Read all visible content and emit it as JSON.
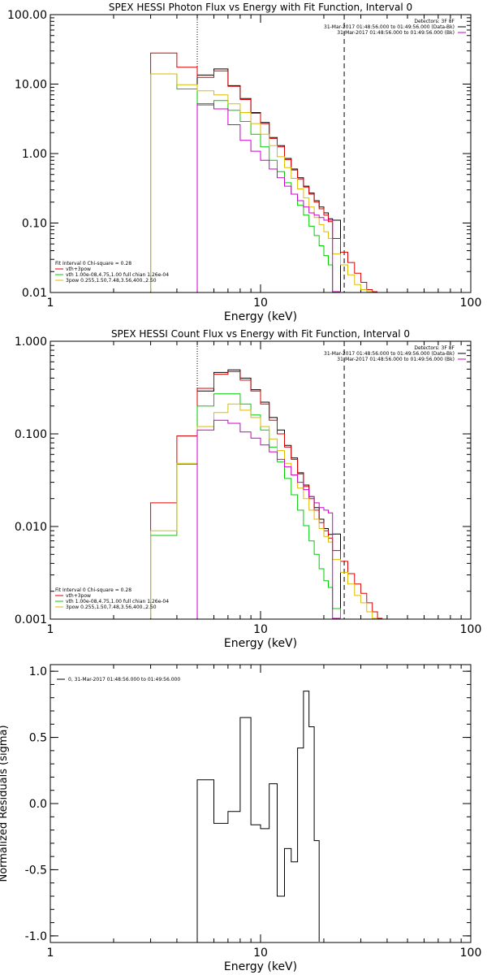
{
  "chart_data": [
    {
      "type": "line",
      "step": true,
      "title": "SPEX HESSI Photon Flux vs Energy with Fit Function, Interval 0",
      "xlabel": "Energy (keV)",
      "ylabel": "",
      "xscale": "log",
      "yscale": "log",
      "xlim": [
        1,
        100
      ],
      "ylim": [
        0.01,
        100
      ],
      "xticks": [
        1,
        10,
        100
      ],
      "xtick_labels": [
        "1",
        "10",
        "100"
      ],
      "yticks": [
        0.01,
        0.1,
        1,
        10,
        100
      ],
      "ytick_labels": [
        "0.01",
        "0.10",
        "1.00",
        "10.00",
        "100.00"
      ],
      "vlines": [
        {
          "x": 5,
          "style": "dotted"
        },
        {
          "x": 25,
          "style": "dashed"
        }
      ],
      "legend_topright": [
        {
          "text": "Detectors: 3F 8F",
          "color": "#000000"
        },
        {
          "text": "31-Mar-2017 01:48:56.000 to 01:49:56.000 (Data-Bk)",
          "color": "#000000"
        },
        {
          "text": "31-Mar-2017 01:48:56.000 to 01:49:56.000 (Bk)",
          "color": "#cc00cc"
        }
      ],
      "legend_bottomleft": [
        {
          "text": "Fit Interval 0   Chi-square = 0.28",
          "color": "#000000"
        },
        {
          "text": "vth+3pow",
          "color": "#dd0000"
        },
        {
          "text": "vth 1.00e-08,4.75,1.00  full chian 1.26e-04",
          "color": "#00cc00"
        },
        {
          "text": "3pow 0.255,1.50,7.48,3.56,400.,2.50",
          "color": "#ddbb00"
        }
      ],
      "edges": [
        3,
        4,
        5,
        6,
        7,
        8,
        9,
        10,
        11,
        12,
        13,
        14,
        15,
        16,
        17,
        18,
        19,
        20,
        21,
        22,
        24,
        26,
        28,
        30,
        32,
        34,
        36
      ],
      "series": [
        {
          "color": "#000000",
          "values": [
            null,
            null,
            13.5,
            16.5,
            9.5,
            6.2,
            3.9,
            2.8,
            1.7,
            1.3,
            0.85,
            0.6,
            0.45,
            0.34,
            0.27,
            0.21,
            0.17,
            0.14,
            0.115,
            0.11,
            null,
            null,
            null,
            null,
            null,
            null
          ]
        },
        {
          "color": "#dd0000",
          "values": [
            28,
            17.5,
            12.5,
            15.5,
            9.3,
            6.0,
            3.8,
            2.7,
            1.65,
            1.25,
            0.82,
            0.58,
            0.43,
            0.33,
            0.26,
            0.2,
            0.16,
            0.13,
            0.105,
            0.06,
            0.038,
            0.027,
            0.019,
            0.014,
            0.011,
            0.009
          ]
        },
        {
          "color": "#00cc00",
          "values": [
            14,
            8.5,
            5.0,
            5.8,
            4.2,
            2.9,
            1.9,
            1.25,
            0.8,
            0.55,
            0.38,
            0.26,
            0.18,
            0.13,
            0.09,
            0.066,
            0.047,
            0.034,
            0.025,
            0.008,
            null,
            null,
            null,
            null,
            null,
            null
          ]
        },
        {
          "color": "#ddbb00",
          "values": [
            14,
            9.8,
            8.0,
            7.0,
            5.2,
            3.9,
            2.7,
            1.9,
            1.3,
            0.9,
            0.63,
            0.44,
            0.31,
            0.23,
            0.17,
            0.12,
            0.095,
            0.075,
            0.06,
            0.036,
            0.025,
            0.018,
            0.013,
            0.011,
            0.009,
            null
          ]
        },
        {
          "color": "#cc00cc",
          "values": [
            null,
            null,
            5.2,
            4.4,
            2.6,
            1.55,
            1.08,
            0.8,
            0.6,
            0.45,
            0.34,
            0.26,
            0.21,
            0.17,
            0.14,
            0.13,
            0.12,
            0.11,
            0.11,
            0.007,
            null,
            null,
            null,
            null,
            null,
            null
          ]
        }
      ]
    },
    {
      "type": "line",
      "step": true,
      "title": "SPEX HESSI Count Flux vs Energy with Fit Function, Interval 0",
      "xlabel": "Energy (keV)",
      "ylabel": "",
      "xscale": "log",
      "yscale": "log",
      "xlim": [
        1,
        100
      ],
      "ylim": [
        0.001,
        1
      ],
      "xticks": [
        1,
        10,
        100
      ],
      "xtick_labels": [
        "1",
        "10",
        "100"
      ],
      "yticks": [
        0.001,
        0.01,
        0.1,
        1
      ],
      "ytick_labels": [
        "0.001",
        "0.010",
        "0.100",
        "1.000"
      ],
      "vlines": [
        {
          "x": 5,
          "style": "dotted"
        },
        {
          "x": 25,
          "style": "dashed"
        }
      ],
      "legend_topright": [
        {
          "text": "Detectors: 3F 8F",
          "color": "#000000"
        },
        {
          "text": "31-Mar-2017 01:48:56.000 to 01:49:56.000 (Data-Bk)",
          "color": "#000000"
        },
        {
          "text": "31-Mar-2017 01:48:56.000 to 01:49:56.000 (Bk)",
          "color": "#cc00cc"
        }
      ],
      "legend_bottomleft": [
        {
          "text": "Fit Interval 0   Chi-square = 0.28",
          "color": "#000000"
        },
        {
          "text": "vth+3pow",
          "color": "#dd0000"
        },
        {
          "text": "vth 1.00e-08,4.75,1.00  full chian 1.26e-04",
          "color": "#00cc00"
        },
        {
          "text": "3pow 0.255,1.50,7.48,3.56,400.,2.50",
          "color": "#ddbb00"
        }
      ],
      "edges": [
        3,
        4,
        5,
        6,
        7,
        8,
        9,
        10,
        11,
        12,
        13,
        14,
        15,
        16,
        17,
        18,
        19,
        20,
        21,
        22,
        24,
        26,
        28,
        30,
        32,
        34,
        36,
        38
      ],
      "series": [
        {
          "color": "#000000",
          "values": [
            null,
            null,
            0.29,
            0.46,
            0.49,
            0.4,
            0.3,
            0.22,
            0.15,
            0.11,
            0.075,
            0.055,
            0.038,
            0.028,
            0.021,
            0.016,
            0.012,
            0.0095,
            0.0082,
            0.0083,
            null,
            null,
            null,
            null,
            null,
            null,
            null
          ]
        },
        {
          "color": "#dd0000",
          "values": [
            0.018,
            0.095,
            0.31,
            0.44,
            0.47,
            0.38,
            0.29,
            0.21,
            0.14,
            0.1,
            0.072,
            0.053,
            0.037,
            0.027,
            0.02,
            0.015,
            0.011,
            0.009,
            0.0075,
            0.0055,
            0.0042,
            0.0031,
            0.0024,
            0.0019,
            0.0015,
            0.0012,
            0.001
          ]
        },
        {
          "color": "#00cc00",
          "values": [
            0.008,
            0.047,
            0.2,
            0.27,
            0.27,
            0.21,
            0.16,
            0.11,
            0.072,
            0.05,
            0.033,
            0.022,
            0.015,
            0.0102,
            0.007,
            0.005,
            0.0035,
            0.0026,
            0.0022,
            0.0013,
            null,
            null,
            null,
            null,
            null,
            null,
            null
          ]
        },
        {
          "color": "#ddbb00",
          "values": [
            0.009,
            0.048,
            0.12,
            0.17,
            0.21,
            0.18,
            0.15,
            0.12,
            0.088,
            0.066,
            0.048,
            0.036,
            0.026,
            0.02,
            0.015,
            0.012,
            0.0095,
            0.0078,
            0.0068,
            0.0044,
            0.0032,
            0.0024,
            0.0018,
            0.0015,
            0.0012,
            0.001,
            null
          ]
        },
        {
          "color": "#cc00cc",
          "values": [
            null,
            null,
            0.11,
            0.14,
            0.13,
            0.105,
            0.09,
            0.076,
            0.064,
            0.053,
            0.044,
            0.036,
            0.03,
            0.025,
            0.021,
            0.018,
            0.016,
            0.015,
            0.014,
            0.0009,
            null,
            null,
            null,
            null,
            null,
            null,
            null
          ]
        }
      ]
    },
    {
      "type": "line",
      "step": true,
      "title": "",
      "xlabel": "Energy (keV)",
      "ylabel": "Normalized Residuals (sigma)",
      "xscale": "log",
      "yscale": "linear",
      "xlim": [
        1,
        100
      ],
      "ylim": [
        -1.05,
        1.05
      ],
      "xticks": [
        1,
        10,
        100
      ],
      "xtick_labels": [
        "1",
        "10",
        "100"
      ],
      "yticks": [
        -1,
        -0.5,
        0,
        0.5,
        1
      ],
      "ytick_labels": [
        "-1.0",
        "-0.5",
        "0.0",
        "0.5",
        "1.0"
      ],
      "legend_topleft": [
        {
          "text": "0, 31-Mar-2017 01:48:56.000 to 01:49:56.000",
          "color": "#000000"
        }
      ],
      "edges": [
        5,
        6,
        7,
        8,
        9,
        10,
        11,
        12,
        13,
        14,
        15,
        16,
        17,
        18,
        19,
        20,
        21,
        22,
        24,
        26
      ],
      "series": [
        {
          "color": "#000000",
          "floor": -1.05,
          "values": [
            0.18,
            -0.15,
            -0.06,
            0.65,
            -0.16,
            -0.19,
            0.15,
            -0.7,
            -0.34,
            -0.44,
            0.42,
            0.85,
            0.58,
            -0.28,
            null,
            null,
            null,
            null,
            null
          ]
        }
      ]
    }
  ]
}
